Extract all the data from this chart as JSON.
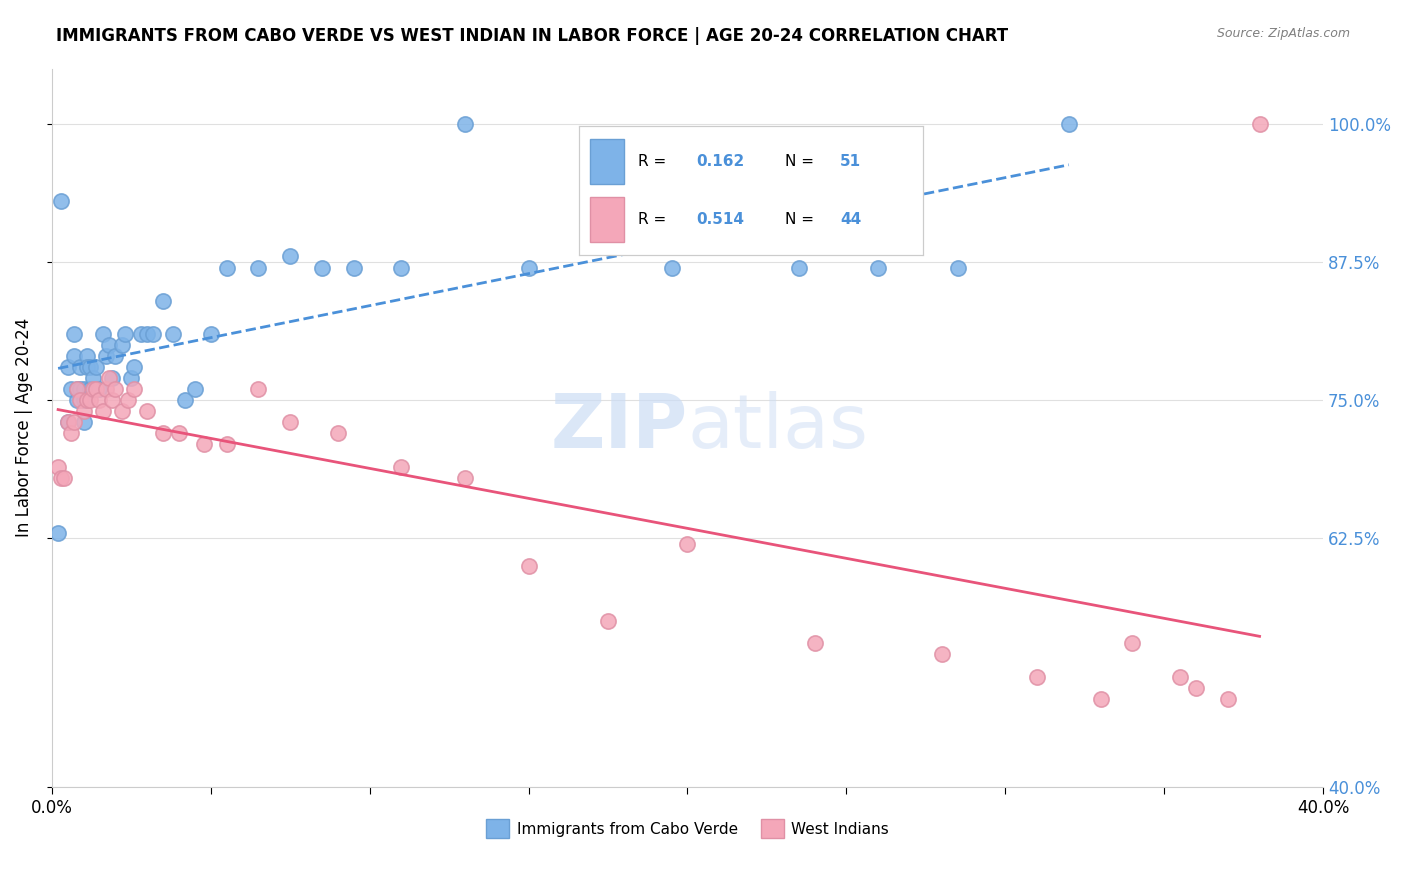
{
  "title": "IMMIGRANTS FROM CABO VERDE VS WEST INDIAN IN LABOR FORCE | AGE 20-24 CORRELATION CHART",
  "source": "Source: ZipAtlas.com",
  "ylabel": "In Labor Force | Age 20-24",
  "xlim": [
    0.0,
    0.4
  ],
  "ylim": [
    0.4,
    1.05
  ],
  "yticks": [
    0.4,
    0.625,
    0.75,
    0.875,
    1.0
  ],
  "ytick_labels": [
    "40.0%",
    "62.5%",
    "75.0%",
    "87.5%",
    "100.0%"
  ],
  "legend_r1": "0.162",
  "legend_n1": "51",
  "legend_r2": "0.514",
  "legend_n2": "44",
  "cabo_verde_color": "#7EB3E8",
  "cabo_verde_edge": "#6A9FD4",
  "west_indian_color": "#F4A7B9",
  "west_indian_edge": "#E090A5",
  "trend_blue": "#4A90D9",
  "trend_pink": "#E8547A",
  "cabo_verde_x": [
    0.002,
    0.003,
    0.005,
    0.005,
    0.006,
    0.007,
    0.007,
    0.008,
    0.008,
    0.009,
    0.009,
    0.01,
    0.01,
    0.01,
    0.011,
    0.011,
    0.012,
    0.012,
    0.013,
    0.014,
    0.015,
    0.016,
    0.017,
    0.018,
    0.019,
    0.02,
    0.022,
    0.023,
    0.025,
    0.026,
    0.028,
    0.03,
    0.032,
    0.035,
    0.038,
    0.042,
    0.045,
    0.05,
    0.055,
    0.065,
    0.075,
    0.085,
    0.095,
    0.11,
    0.13,
    0.15,
    0.195,
    0.235,
    0.26,
    0.285,
    0.32
  ],
  "cabo_verde_y": [
    0.63,
    0.93,
    0.78,
    0.73,
    0.76,
    0.81,
    0.79,
    0.76,
    0.75,
    0.76,
    0.78,
    0.76,
    0.75,
    0.73,
    0.79,
    0.78,
    0.78,
    0.76,
    0.77,
    0.78,
    0.76,
    0.81,
    0.79,
    0.8,
    0.77,
    0.79,
    0.8,
    0.81,
    0.77,
    0.78,
    0.81,
    0.81,
    0.81,
    0.84,
    0.81,
    0.75,
    0.76,
    0.81,
    0.87,
    0.87,
    0.88,
    0.87,
    0.87,
    0.87,
    1.0,
    0.87,
    0.87,
    0.87,
    0.87,
    0.87,
    1.0
  ],
  "west_indian_x": [
    0.002,
    0.003,
    0.004,
    0.005,
    0.006,
    0.007,
    0.008,
    0.009,
    0.01,
    0.011,
    0.012,
    0.013,
    0.014,
    0.015,
    0.016,
    0.017,
    0.018,
    0.019,
    0.02,
    0.022,
    0.024,
    0.026,
    0.03,
    0.035,
    0.04,
    0.048,
    0.055,
    0.065,
    0.075,
    0.09,
    0.11,
    0.13,
    0.15,
    0.175,
    0.2,
    0.24,
    0.28,
    0.31,
    0.33,
    0.34,
    0.355,
    0.36,
    0.37,
    0.38
  ],
  "west_indian_y": [
    0.69,
    0.68,
    0.68,
    0.73,
    0.72,
    0.73,
    0.76,
    0.75,
    0.74,
    0.75,
    0.75,
    0.76,
    0.76,
    0.75,
    0.74,
    0.76,
    0.77,
    0.75,
    0.76,
    0.74,
    0.75,
    0.76,
    0.74,
    0.72,
    0.72,
    0.71,
    0.71,
    0.76,
    0.73,
    0.72,
    0.69,
    0.68,
    0.6,
    0.55,
    0.62,
    0.53,
    0.52,
    0.5,
    0.48,
    0.53,
    0.5,
    0.49,
    0.48,
    1.0
  ],
  "background_color": "#FFFFFF",
  "grid_color": "#E0E0E0"
}
